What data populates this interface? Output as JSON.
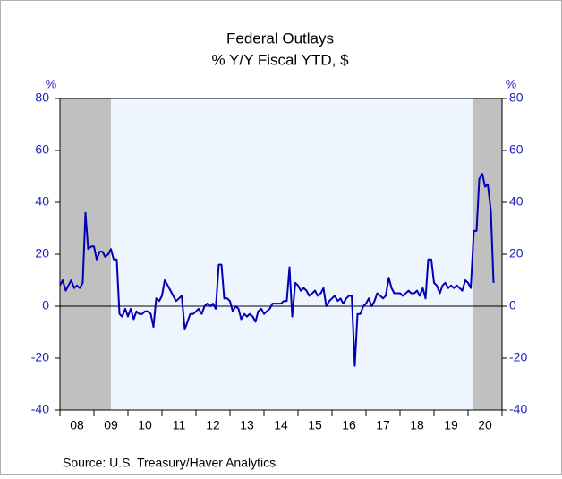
{
  "chart_data": {
    "type": "line",
    "title": "Federal Outlays",
    "subtitle": "% Y/Y   Fiscal YTD, $",
    "ylabel": "%",
    "y2label": "%",
    "source": "Source:  U.S. Treasury/Haver Analytics",
    "xlim": [
      2008,
      2021
    ],
    "xticks": [
      {
        "value": 2008.5,
        "label": "08"
      },
      {
        "value": 2009.5,
        "label": "09"
      },
      {
        "value": 2010.5,
        "label": "10"
      },
      {
        "value": 2011.5,
        "label": "11"
      },
      {
        "value": 2012.5,
        "label": "12"
      },
      {
        "value": 2013.5,
        "label": "13"
      },
      {
        "value": 2014.5,
        "label": "14"
      },
      {
        "value": 2015.5,
        "label": "15"
      },
      {
        "value": 2016.5,
        "label": "16"
      },
      {
        "value": 2017.5,
        "label": "17"
      },
      {
        "value": 2018.5,
        "label": "18"
      },
      {
        "value": 2019.5,
        "label": "19"
      },
      {
        "value": 2020.5,
        "label": "20"
      }
    ],
    "xtick_marks": [
      2008,
      2009,
      2010,
      2011,
      2012,
      2013,
      2014,
      2015,
      2016,
      2017,
      2018,
      2019,
      2020,
      2021
    ],
    "ylim": [
      -40,
      80
    ],
    "yticks": [
      -40,
      -20,
      0,
      20,
      40,
      60,
      80
    ],
    "y2lim": [
      -40,
      80
    ],
    "y2ticks": [
      -40,
      -20,
      0,
      20,
      40,
      60,
      80
    ],
    "shaded_ranges": [
      [
        2008,
        2009.5
      ],
      [
        2020.13,
        2021
      ]
    ],
    "shade_color": "#c0c0c0",
    "x": [
      2008.0,
      2008.08,
      2008.17,
      2008.25,
      2008.33,
      2008.42,
      2008.5,
      2008.58,
      2008.67,
      2008.75,
      2008.83,
      2008.92,
      2009.0,
      2009.08,
      2009.17,
      2009.25,
      2009.33,
      2009.42,
      2009.5,
      2009.58,
      2009.67,
      2009.75,
      2009.83,
      2009.92,
      2010.0,
      2010.08,
      2010.17,
      2010.25,
      2010.33,
      2010.42,
      2010.5,
      2010.58,
      2010.67,
      2010.75,
      2010.83,
      2010.92,
      2011.0,
      2011.08,
      2011.17,
      2011.25,
      2011.33,
      2011.42,
      2011.5,
      2011.58,
      2011.67,
      2011.75,
      2011.83,
      2011.92,
      2012.0,
      2012.08,
      2012.17,
      2012.25,
      2012.33,
      2012.42,
      2012.5,
      2012.58,
      2012.67,
      2012.75,
      2012.83,
      2012.92,
      2013.0,
      2013.08,
      2013.17,
      2013.25,
      2013.33,
      2013.42,
      2013.5,
      2013.58,
      2013.67,
      2013.75,
      2013.83,
      2013.92,
      2014.0,
      2014.08,
      2014.17,
      2014.25,
      2014.33,
      2014.42,
      2014.5,
      2014.58,
      2014.67,
      2014.75,
      2014.83,
      2014.92,
      2015.0,
      2015.08,
      2015.17,
      2015.25,
      2015.33,
      2015.42,
      2015.5,
      2015.58,
      2015.67,
      2015.75,
      2015.83,
      2015.92,
      2016.0,
      2016.08,
      2016.17,
      2016.25,
      2016.33,
      2016.42,
      2016.5,
      2016.58,
      2016.67,
      2016.75,
      2016.83,
      2016.92,
      2017.0,
      2017.08,
      2017.17,
      2017.25,
      2017.33,
      2017.42,
      2017.5,
      2017.58,
      2017.67,
      2017.75,
      2017.83,
      2017.92,
      2018.0,
      2018.08,
      2018.17,
      2018.25,
      2018.33,
      2018.42,
      2018.5,
      2018.58,
      2018.67,
      2018.75,
      2018.83,
      2018.92,
      2019.0,
      2019.08,
      2019.17,
      2019.25,
      2019.33,
      2019.42,
      2019.5,
      2019.58,
      2019.67,
      2019.75,
      2019.83,
      2019.92,
      2020.0,
      2020.08,
      2020.17,
      2020.25,
      2020.33,
      2020.42,
      2020.5,
      2020.58,
      2020.67,
      2020.75
    ],
    "series": [
      {
        "name": "Federal Outlays",
        "color": "#0000b4",
        "values": [
          8,
          10,
          6,
          8,
          10,
          7,
          8,
          7,
          9,
          36,
          22,
          23,
          23,
          18,
          21,
          21,
          19,
          20,
          22,
          18,
          18,
          -3,
          -4,
          -1,
          -4,
          -1,
          -5,
          -2,
          -3,
          -3,
          -2,
          -2,
          -3,
          -8,
          3,
          2,
          4,
          10,
          8,
          6,
          4,
          2,
          3,
          4,
          -9,
          -6,
          -3,
          -3,
          -2,
          -1,
          -3,
          0,
          1,
          0,
          1,
          -1,
          16,
          16,
          3,
          3,
          2,
          -2,
          0,
          -1,
          -5,
          -3,
          -4,
          -3,
          -4,
          -6,
          -2,
          -1,
          -3,
          -2,
          -1,
          1,
          1,
          1,
          1,
          2,
          2,
          15,
          -4,
          9,
          8,
          6,
          7,
          6,
          4,
          5,
          6,
          4,
          5,
          7,
          0,
          2,
          3,
          4,
          2,
          3,
          1,
          3,
          4,
          4,
          -23,
          -3,
          -3,
          0,
          1,
          3,
          0,
          2,
          5,
          4,
          3,
          4,
          11,
          7,
          5,
          5,
          5,
          4,
          5,
          6,
          5,
          5,
          6,
          4,
          7,
          3,
          18,
          18,
          9,
          8,
          5,
          8,
          9,
          7,
          8,
          7,
          8,
          7,
          6,
          10,
          9,
          7,
          29,
          29,
          49,
          51,
          46,
          47,
          37,
          9
        ]
      }
    ]
  }
}
